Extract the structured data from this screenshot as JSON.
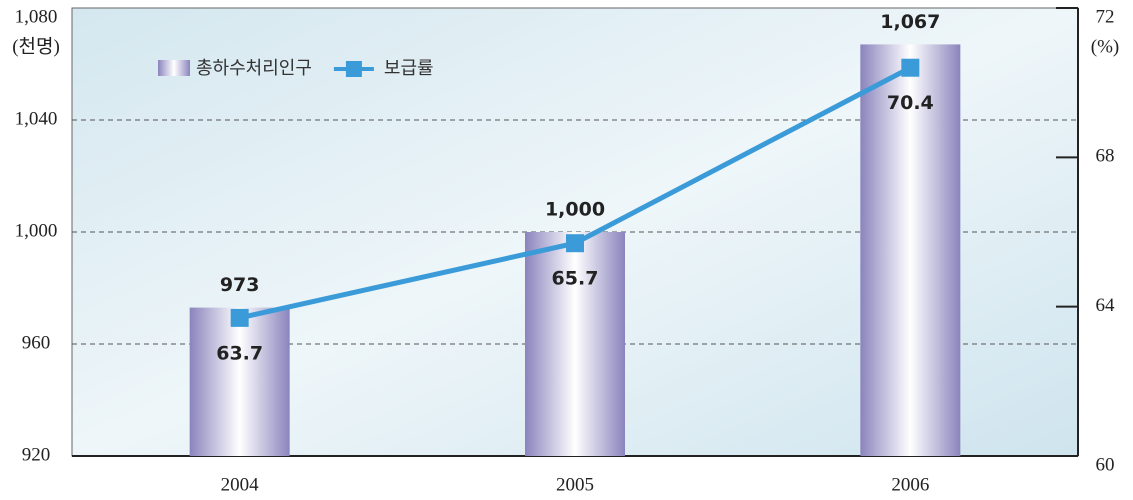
{
  "chart_data": {
    "type": "bar",
    "categories": [
      "2004",
      "2005",
      "2006"
    ],
    "series": [
      {
        "name": "총하수처리인구",
        "type": "bar",
        "color": "#8a84bd",
        "values": [
          973,
          1000,
          1067
        ],
        "value_labels": [
          "973",
          "1,000",
          "1,067"
        ]
      },
      {
        "name": "보급률",
        "type": "line",
        "axis": "y2",
        "color": "#3b9bd8",
        "values": [
          63.7,
          65.7,
          70.4
        ]
      }
    ],
    "ylabel": "(천명)",
    "y2label": "(%)",
    "ylim": [
      920,
      1080
    ],
    "yticks": [
      920,
      960,
      {
        "value": 1000,
        "label": "1,000"
      },
      {
        "value": 1040,
        "label": "1,040"
      },
      {
        "value": 1080,
        "label": "1,080"
      }
    ],
    "y2lim": [
      60,
      72
    ],
    "y2ticks": [
      60,
      64,
      68,
      72
    ],
    "grid": true,
    "legend": "upper left"
  }
}
